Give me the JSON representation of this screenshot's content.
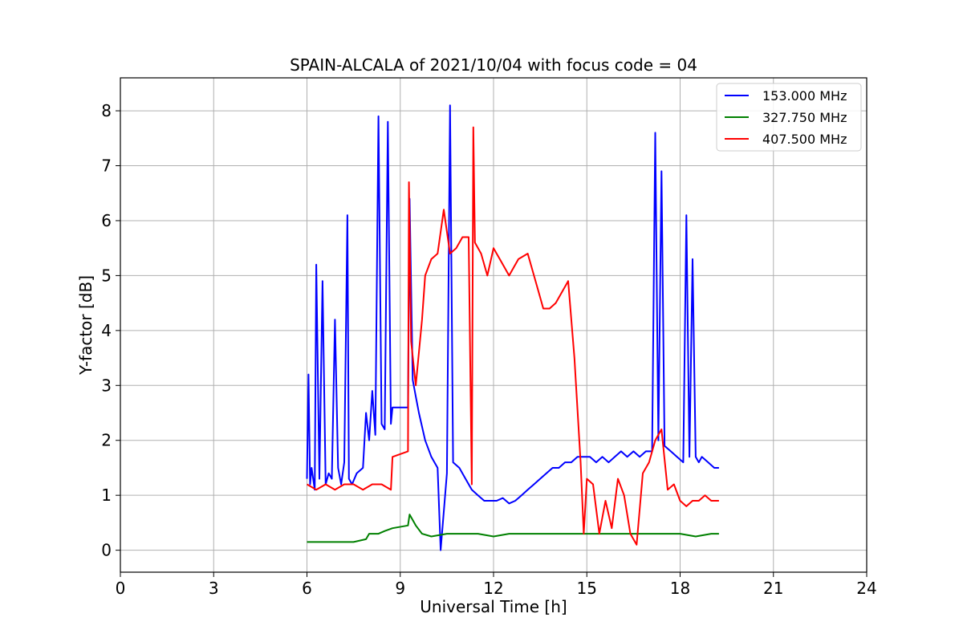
{
  "chart_data": {
    "type": "line",
    "title": "SPAIN-ALCALA of 2021/10/04 with focus code = 04",
    "xlabel": "Universal Time [h]",
    "ylabel": "Y-factor [dB]",
    "xlim": [
      0,
      24
    ],
    "ylim": [
      -0.4,
      8.6
    ],
    "xticks": [
      0,
      3,
      6,
      9,
      12,
      15,
      18,
      21,
      24
    ],
    "yticks": [
      0,
      1,
      2,
      3,
      4,
      5,
      6,
      7,
      8
    ],
    "grid": true,
    "legend_position": "top-right",
    "series": [
      {
        "name": "153.000 MHz",
        "color": "#0000ff",
        "x": [
          6.0,
          6.05,
          6.1,
          6.15,
          6.25,
          6.3,
          6.4,
          6.5,
          6.6,
          6.7,
          6.8,
          6.9,
          7.0,
          7.1,
          7.2,
          7.3,
          7.35,
          7.45,
          7.6,
          7.8,
          7.9,
          8.0,
          8.1,
          8.2,
          8.3,
          8.4,
          8.5,
          8.6,
          8.7,
          8.75,
          9.25,
          9.3,
          9.4,
          9.5,
          9.6,
          9.8,
          10.0,
          10.2,
          10.3,
          10.5,
          10.6,
          10.7,
          10.9,
          11.1,
          11.3,
          11.5,
          11.7,
          11.9,
          12.1,
          12.3,
          12.5,
          12.7,
          12.9,
          13.1,
          13.3,
          13.5,
          13.7,
          13.9,
          14.1,
          14.3,
          14.5,
          14.7,
          14.9,
          15.1,
          15.3,
          15.5,
          15.7,
          15.9,
          16.1,
          16.3,
          16.5,
          16.7,
          16.9,
          17.1,
          17.2,
          17.3,
          17.4,
          17.5,
          17.7,
          17.9,
          18.1,
          18.2,
          18.3,
          18.4,
          18.5,
          18.6,
          18.7,
          18.9,
          19.1,
          19.25
        ],
        "y": [
          1.3,
          3.2,
          1.2,
          1.5,
          1.1,
          5.2,
          1.3,
          4.9,
          1.2,
          1.4,
          1.3,
          4.2,
          1.5,
          1.2,
          1.6,
          6.1,
          1.3,
          1.2,
          1.4,
          1.5,
          2.5,
          2.0,
          2.9,
          2.1,
          7.9,
          2.3,
          2.2,
          7.8,
          2.3,
          2.6,
          2.6,
          6.4,
          3.1,
          2.8,
          2.5,
          2.0,
          1.7,
          1.5,
          0.0,
          1.4,
          8.1,
          1.6,
          1.5,
          1.3,
          1.1,
          1.0,
          0.9,
          0.9,
          0.9,
          0.95,
          0.85,
          0.9,
          1.0,
          1.1,
          1.2,
          1.3,
          1.4,
          1.5,
          1.5,
          1.6,
          1.6,
          1.7,
          1.7,
          1.7,
          1.6,
          1.7,
          1.6,
          1.7,
          1.8,
          1.7,
          1.8,
          1.7,
          1.8,
          1.8,
          7.6,
          2.0,
          6.9,
          1.9,
          1.8,
          1.7,
          1.6,
          6.1,
          1.7,
          5.3,
          1.7,
          1.6,
          1.7,
          1.6,
          1.5,
          1.5
        ]
      },
      {
        "name": "327.750 MHz",
        "color": "#008000",
        "x": [
          6.0,
          6.5,
          7.0,
          7.5,
          7.9,
          8.0,
          8.3,
          8.5,
          8.75,
          9.25,
          9.3,
          9.5,
          9.7,
          10.0,
          10.5,
          11.0,
          11.5,
          12.0,
          12.5,
          13.0,
          13.5,
          14.0,
          14.5,
          15.0,
          15.5,
          16.0,
          16.5,
          17.0,
          17.5,
          18.0,
          18.5,
          19.0,
          19.25
        ],
        "y": [
          0.15,
          0.15,
          0.15,
          0.15,
          0.2,
          0.3,
          0.3,
          0.35,
          0.4,
          0.45,
          0.65,
          0.45,
          0.3,
          0.25,
          0.3,
          0.3,
          0.3,
          0.25,
          0.3,
          0.3,
          0.3,
          0.3,
          0.3,
          0.3,
          0.3,
          0.3,
          0.3,
          0.3,
          0.3,
          0.3,
          0.25,
          0.3,
          0.3
        ]
      },
      {
        "name": "407.500 MHz",
        "color": "#ff0000",
        "x": [
          6.0,
          6.3,
          6.6,
          6.9,
          7.2,
          7.5,
          7.8,
          8.1,
          8.4,
          8.7,
          8.75,
          9.25,
          9.28,
          9.35,
          9.5,
          9.7,
          9.8,
          10.0,
          10.2,
          10.4,
          10.6,
          10.8,
          11.0,
          11.2,
          11.3,
          11.35,
          11.4,
          11.6,
          11.8,
          12.0,
          12.2,
          12.5,
          12.8,
          13.1,
          13.4,
          13.6,
          13.8,
          14.0,
          14.2,
          14.4,
          14.6,
          14.8,
          14.9,
          15.0,
          15.2,
          15.4,
          15.6,
          15.8,
          16.0,
          16.2,
          16.4,
          16.6,
          16.8,
          17.0,
          17.2,
          17.4,
          17.6,
          17.8,
          18.0,
          18.2,
          18.4,
          18.6,
          18.8,
          19.0,
          19.25
        ],
        "y": [
          1.2,
          1.1,
          1.2,
          1.1,
          1.2,
          1.2,
          1.1,
          1.2,
          1.2,
          1.1,
          1.7,
          1.8,
          6.7,
          3.8,
          3.0,
          4.2,
          5.0,
          5.3,
          5.4,
          6.2,
          5.4,
          5.5,
          5.7,
          5.7,
          1.2,
          7.7,
          5.6,
          5.4,
          5.0,
          5.5,
          5.3,
          5.0,
          5.3,
          5.4,
          4.8,
          4.4,
          4.4,
          4.5,
          4.7,
          4.9,
          3.5,
          1.6,
          0.3,
          1.3,
          1.2,
          0.3,
          0.9,
          0.4,
          1.3,
          1.0,
          0.3,
          0.1,
          1.4,
          1.6,
          2.0,
          2.2,
          1.1,
          1.2,
          0.9,
          0.8,
          0.9,
          0.9,
          1.0,
          0.9,
          0.9
        ]
      }
    ]
  }
}
